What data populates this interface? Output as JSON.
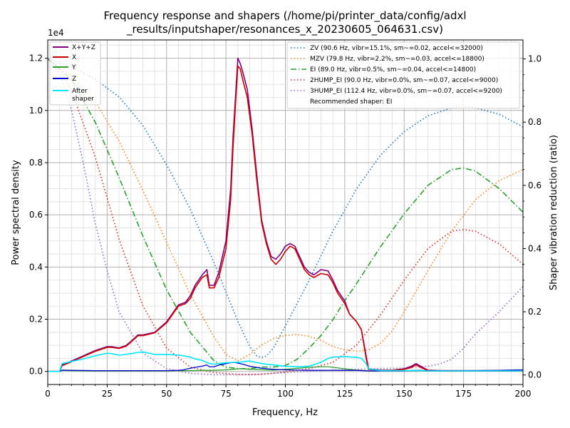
{
  "chart_data": {
    "type": "line",
    "title_line1": "Frequency response and shapers (/home/pi/printer_data/config/adxl",
    "title_line2": "_results/inputshaper/resonances_x_20230605_064631.csv)",
    "xlabel": "Frequency, Hz",
    "ylabel": "Power spectral density",
    "y2label": "Shaper vibration reduction (ratio)",
    "y_exponent_label": "1e4",
    "xlim": [
      0,
      200
    ],
    "ylim": [
      -0.05,
      1.27
    ],
    "y2lim": [
      -0.03,
      1.06
    ],
    "x_ticks": [
      0,
      25,
      50,
      75,
      100,
      125,
      150,
      175,
      200
    ],
    "y_ticks": [
      0.0,
      0.2,
      0.4,
      0.6,
      0.8,
      1.0,
      1.2
    ],
    "y_tick_labels": [
      "0.0",
      "0.2",
      "0.4",
      "0.6",
      "0.8",
      "1.0",
      "1.2"
    ],
    "y2_ticks": [
      0.0,
      0.2,
      0.4,
      0.6,
      0.8,
      1.0
    ],
    "y2_tick_labels": [
      "0.0",
      "0.2",
      "0.4",
      "0.6",
      "0.8",
      "1.0"
    ],
    "grid": true,
    "legend_left_position": "top-left",
    "legend_right_position": "top-right",
    "psd_series": [
      {
        "name": "X+Y+Z",
        "color": "#800080",
        "width": 1.6,
        "x": [
          0,
          5,
          6,
          10,
          15,
          20,
          25,
          27,
          30,
          33,
          35,
          38,
          40,
          45,
          50,
          55,
          58,
          60,
          62,
          65,
          67,
          68,
          70,
          72,
          75,
          77,
          78,
          79,
          80,
          81,
          82,
          84,
          86,
          88,
          90,
          92,
          94,
          96,
          98,
          100,
          102,
          104,
          106,
          108,
          110,
          112,
          115,
          118,
          120,
          122,
          125,
          127,
          130,
          132,
          134,
          135,
          140,
          145,
          150,
          153,
          155,
          157,
          160,
          165,
          170,
          175,
          180,
          190,
          200
        ],
        "y": [
          0,
          0,
          0.025,
          0.04,
          0.06,
          0.08,
          0.095,
          0.095,
          0.09,
          0.1,
          0.115,
          0.14,
          0.14,
          0.15,
          0.19,
          0.255,
          0.265,
          0.29,
          0.33,
          0.37,
          0.39,
          0.33,
          0.33,
          0.38,
          0.5,
          0.7,
          0.9,
          1.05,
          1.2,
          1.18,
          1.15,
          1.08,
          0.93,
          0.75,
          0.58,
          0.5,
          0.44,
          0.43,
          0.45,
          0.48,
          0.49,
          0.48,
          0.44,
          0.4,
          0.38,
          0.37,
          0.39,
          0.385,
          0.35,
          0.31,
          0.27,
          0.22,
          0.19,
          0.16,
          0.06,
          0.01,
          0.005,
          0.005,
          0.01,
          0.02,
          0.03,
          0.02,
          0.005,
          0.003,
          0.003,
          0.003,
          0.003,
          0.003,
          0.003
        ]
      },
      {
        "name": "X",
        "color": "#d00000",
        "width": 1.6,
        "x": [
          0,
          5,
          6,
          10,
          15,
          20,
          25,
          27,
          30,
          33,
          35,
          38,
          40,
          45,
          50,
          55,
          58,
          60,
          62,
          65,
          67,
          68,
          70,
          72,
          75,
          77,
          78,
          79,
          80,
          81,
          82,
          84,
          86,
          88,
          90,
          92,
          94,
          96,
          98,
          100,
          102,
          104,
          106,
          108,
          110,
          112,
          115,
          118,
          120,
          122,
          125,
          127,
          130,
          132,
          134,
          135,
          140,
          145,
          150,
          153,
          155,
          157,
          160,
          165,
          170,
          175,
          180,
          190,
          200
        ],
        "y": [
          0,
          0,
          0.022,
          0.037,
          0.057,
          0.077,
          0.092,
          0.092,
          0.088,
          0.097,
          0.112,
          0.137,
          0.137,
          0.148,
          0.186,
          0.25,
          0.26,
          0.28,
          0.32,
          0.36,
          0.37,
          0.32,
          0.32,
          0.36,
          0.47,
          0.66,
          0.86,
          1.02,
          1.17,
          1.16,
          1.12,
          1.05,
          0.91,
          0.73,
          0.57,
          0.49,
          0.43,
          0.41,
          0.43,
          0.46,
          0.48,
          0.47,
          0.43,
          0.39,
          0.37,
          0.36,
          0.375,
          0.37,
          0.34,
          0.3,
          0.26,
          0.22,
          0.19,
          0.16,
          0.05,
          0.008,
          0.004,
          0.004,
          0.008,
          0.015,
          0.025,
          0.015,
          0.004,
          0.002,
          0.002,
          0.002,
          0.002,
          0.002,
          0.002
        ]
      },
      {
        "name": "Y",
        "color": "#2ca02c",
        "width": 1.3,
        "x": [
          0,
          5,
          6,
          10,
          20,
          30,
          40,
          50,
          55,
          60,
          65,
          70,
          75,
          78,
          80,
          82,
          85,
          90,
          95,
          100,
          105,
          110,
          115,
          118,
          120,
          125,
          130,
          132,
          134,
          135,
          140,
          150,
          160,
          170,
          180,
          190,
          200
        ],
        "y": [
          0,
          0,
          0.004,
          0.003,
          0.002,
          0.002,
          0.002,
          0.002,
          0.003,
          0.003,
          0.004,
          0.004,
          0.006,
          0.008,
          0.01,
          0.01,
          0.008,
          0.006,
          0.005,
          0.008,
          0.012,
          0.016,
          0.018,
          0.018,
          0.016,
          0.01,
          0.005,
          0.004,
          0.003,
          0.002,
          0.002,
          0.002,
          0.002,
          0.002,
          0.002,
          0.002,
          0.002
        ]
      },
      {
        "name": "Z",
        "color": "#0000cc",
        "width": 1.3,
        "x": [
          0,
          5,
          6,
          10,
          20,
          30,
          40,
          50,
          55,
          57,
          60,
          62,
          65,
          67,
          68,
          70,
          72,
          75,
          78,
          80,
          82,
          85,
          90,
          95,
          100,
          105,
          110,
          115,
          120,
          125,
          130,
          135,
          140,
          150,
          155,
          160,
          170,
          180,
          190,
          200
        ],
        "y": [
          0,
          0,
          0.005,
          0.004,
          0.003,
          0.003,
          0.003,
          0.003,
          0.004,
          0.006,
          0.012,
          0.016,
          0.02,
          0.025,
          0.018,
          0.018,
          0.024,
          0.03,
          0.035,
          0.032,
          0.028,
          0.02,
          0.012,
          0.008,
          0.006,
          0.005,
          0.004,
          0.004,
          0.004,
          0.004,
          0.004,
          0.002,
          0.002,
          0.002,
          0.004,
          0.003,
          0.002,
          0.003,
          0.004,
          0.006
        ]
      },
      {
        "name": "After\nshaper",
        "color": "#00e5ff",
        "width": 1.6,
        "x": [
          0,
          5,
          6,
          10,
          15,
          20,
          25,
          27,
          30,
          35,
          38,
          40,
          45,
          50,
          55,
          60,
          62,
          65,
          68,
          70,
          72,
          75,
          78,
          80,
          85,
          90,
          95,
          100,
          105,
          110,
          115,
          118,
          120,
          125,
          128,
          130,
          132,
          134,
          135,
          140,
          145,
          150,
          155,
          160,
          165,
          170,
          175,
          180,
          190,
          200
        ],
        "y": [
          0,
          0,
          0.03,
          0.038,
          0.048,
          0.06,
          0.07,
          0.068,
          0.062,
          0.068,
          0.073,
          0.075,
          0.065,
          0.065,
          0.063,
          0.055,
          0.048,
          0.042,
          0.03,
          0.028,
          0.03,
          0.033,
          0.035,
          0.035,
          0.04,
          0.03,
          0.025,
          0.02,
          0.018,
          0.02,
          0.035,
          0.05,
          0.055,
          0.057,
          0.055,
          0.054,
          0.05,
          0.03,
          0.01,
          0.003,
          0.003,
          0.003,
          0.003,
          0.002,
          0.002,
          0.002,
          0.002,
          0.002,
          0.002,
          0.002
        ]
      }
    ],
    "shaper_series": [
      {
        "name": "ZV (90.6 Hz, vibr=15.1%, sm~=0.02, accel<=32000)",
        "color": "#1f77b4",
        "dash": "1.5,3",
        "x": [
          0,
          10,
          20,
          30,
          40,
          50,
          60,
          70,
          80,
          85,
          88,
          90,
          92,
          95,
          100,
          110,
          120,
          130,
          140,
          150,
          160,
          170,
          175,
          180,
          190,
          200
        ],
        "y": [
          1.0,
          0.975,
          0.935,
          0.88,
          0.79,
          0.665,
          0.525,
          0.355,
          0.17,
          0.09,
          0.06,
          0.055,
          0.06,
          0.085,
          0.155,
          0.3,
          0.455,
          0.59,
          0.695,
          0.77,
          0.82,
          0.845,
          0.85,
          0.845,
          0.825,
          0.785
        ]
      },
      {
        "name": "MZV (79.8 Hz, vibr=2.2%, sm~=0.03, accel<=18800)",
        "color": "#ff7f0e",
        "dash": "1.5,3",
        "x": [
          0,
          10,
          20,
          30,
          40,
          50,
          60,
          70,
          75,
          80,
          85,
          90,
          95,
          100,
          105,
          110,
          115,
          120,
          125,
          130,
          135,
          140,
          145,
          150,
          160,
          170,
          180,
          190,
          200
        ],
        "y": [
          1.0,
          0.945,
          0.865,
          0.74,
          0.585,
          0.42,
          0.255,
          0.12,
          0.065,
          0.045,
          0.065,
          0.095,
          0.115,
          0.125,
          0.128,
          0.122,
          0.11,
          0.09,
          0.08,
          0.075,
          0.08,
          0.1,
          0.14,
          0.2,
          0.33,
          0.455,
          0.555,
          0.615,
          0.65
        ]
      },
      {
        "name": "EI (89.0 Hz, vibr=0.5%, sm~=0.04, accel<=14800)",
        "color": "#2ca02c",
        "dash": "8,3,1.5,3",
        "x": [
          0,
          10,
          20,
          30,
          40,
          50,
          60,
          70,
          75,
          80,
          85,
          90,
          95,
          100,
          105,
          110,
          115,
          120,
          125,
          130,
          140,
          150,
          160,
          170,
          175,
          180,
          190,
          200
        ],
        "y": [
          1.0,
          0.935,
          0.8,
          0.625,
          0.44,
          0.27,
          0.135,
          0.045,
          0.025,
          0.02,
          0.02,
          0.025,
          0.025,
          0.03,
          0.05,
          0.085,
          0.125,
          0.175,
          0.235,
          0.29,
          0.405,
          0.51,
          0.6,
          0.65,
          0.655,
          0.645,
          0.59,
          0.515
        ]
      },
      {
        "name": "2HUMP_EI (90.0 Hz, vibr=0.0%, sm~=0.07, accel<=9000)",
        "color": "#d62728",
        "dash": "1.5,3",
        "x": [
          0,
          5,
          10,
          20,
          30,
          40,
          50,
          60,
          70,
          80,
          85,
          90,
          100,
          110,
          120,
          130,
          140,
          150,
          160,
          170,
          175,
          180,
          190,
          200
        ],
        "y": [
          1.0,
          0.97,
          0.9,
          0.69,
          0.43,
          0.22,
          0.085,
          0.025,
          0.008,
          0.002,
          0.001,
          0.002,
          0.01,
          0.02,
          0.04,
          0.095,
          0.19,
          0.3,
          0.4,
          0.455,
          0.46,
          0.455,
          0.415,
          0.35
        ]
      },
      {
        "name": "3HUMP_EI (112.4 Hz, vibr=0.0%, sm~=0.07, accel<=9200)",
        "color": "#9467bd",
        "dash": "1.5,3",
        "x": [
          0,
          5,
          10,
          15,
          20,
          25,
          30,
          40,
          50,
          60,
          70,
          80,
          90,
          100,
          110,
          120,
          130,
          140,
          150,
          160,
          165,
          170,
          175,
          180,
          190,
          200
        ],
        "y": [
          1.0,
          0.955,
          0.84,
          0.67,
          0.48,
          0.33,
          0.2,
          0.07,
          0.02,
          0.005,
          0.001,
          0.001,
          0.003,
          0.008,
          0.012,
          0.015,
          0.018,
          0.02,
          0.022,
          0.028,
          0.035,
          0.05,
          0.085,
          0.13,
          0.2,
          0.28
        ]
      }
    ],
    "recommended_text": "Recommended shaper: EI"
  }
}
